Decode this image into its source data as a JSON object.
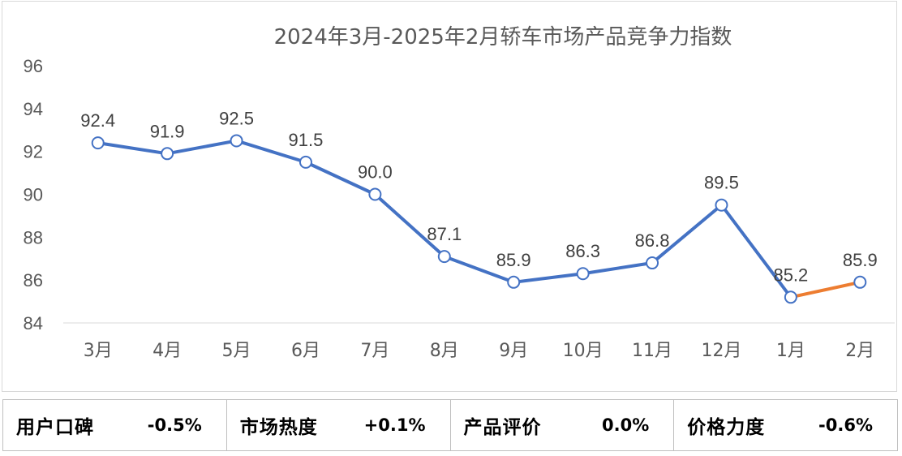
{
  "chart_data": {
    "type": "line",
    "title": "2024年3月-2025年2月轿车市场产品竞争力指数",
    "categories": [
      "3月",
      "4月",
      "5月",
      "6月",
      "7月",
      "8月",
      "9月",
      "10月",
      "11月",
      "12月",
      "1月",
      "2月"
    ],
    "values": [
      92.4,
      91.9,
      92.5,
      91.5,
      90.0,
      87.1,
      85.9,
      86.3,
      86.8,
      89.5,
      85.2,
      85.9
    ],
    "value_labels": [
      "92.4",
      "91.9",
      "92.5",
      "91.5",
      "90.0",
      "87.1",
      "85.9",
      "86.3",
      "86.8",
      "89.5",
      "85.2",
      "85.9"
    ],
    "ylim": [
      84,
      96
    ],
    "yticks": [
      "84",
      "86",
      "88",
      "90",
      "92",
      "94",
      "96"
    ],
    "grid": false,
    "legend": "none",
    "line_color": "#4472c4",
    "highlight_last_segment_color": "#ed7d31"
  },
  "metrics": [
    {
      "label": "用户口碑",
      "value": "-0.5%"
    },
    {
      "label": "市场热度",
      "value": "+0.1%"
    },
    {
      "label": "产品评价",
      "value": "0.0%"
    },
    {
      "label": "价格力度",
      "value": "-0.6%"
    }
  ]
}
